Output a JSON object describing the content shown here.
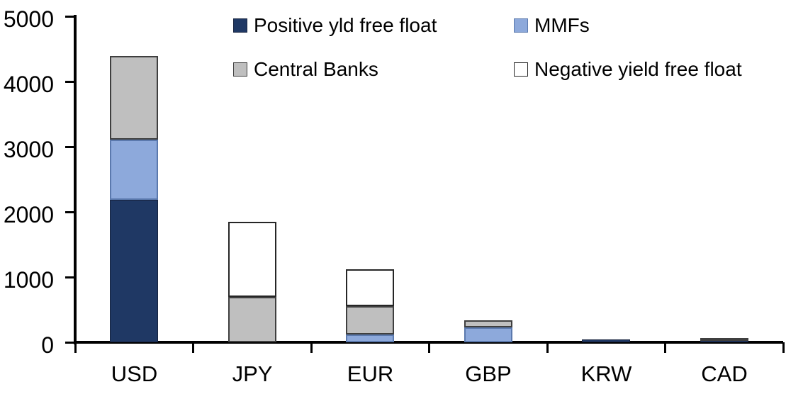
{
  "chart_data": {
    "type": "bar",
    "stacked": true,
    "title": "",
    "xlabel": "",
    "ylabel": "",
    "categories": [
      "USD",
      "JPY",
      "EUR",
      "GBP",
      "KRW",
      "CAD"
    ],
    "series": [
      {
        "name": "Positive yld free float",
        "color": "#1F3864",
        "border_color": "#17233F",
        "values": [
          2180,
          0,
          0,
          0,
          45,
          40
        ]
      },
      {
        "name": "MMFs",
        "color": "#8DA9DB",
        "border_color": "#5B79AD",
        "values": [
          930,
          0,
          120,
          230,
          0,
          0
        ]
      },
      {
        "name": "Central Banks",
        "color": "#BFBFBF",
        "border_color": "#3F3F3F",
        "values": [
          1280,
          700,
          430,
          110,
          0,
          30
        ]
      },
      {
        "name": "Negative yield free float",
        "color": "#FFFFFF",
        "border_color": "#262626",
        "values": [
          0,
          1150,
          570,
          0,
          0,
          0
        ]
      }
    ],
    "ylim": [
      0,
      5000
    ],
    "yticks": [
      0,
      1000,
      2000,
      3000,
      4000,
      5000
    ],
    "legend_position": "top-inside",
    "grid": "off",
    "axis_color": "#000000"
  }
}
